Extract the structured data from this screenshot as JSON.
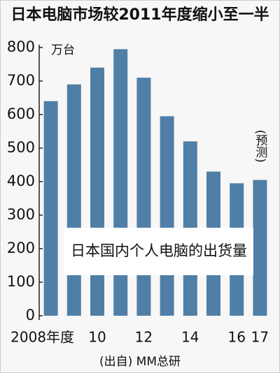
{
  "chart_data": {
    "type": "bar",
    "title": "日本电脑市场较2011年度缩小至一半",
    "unit_label": "万台",
    "inset_label": "日本国内个人电脑的出货量",
    "annotation": "(预测)",
    "source": "(出自) MM总研",
    "categories": [
      "2008年度",
      null,
      "10",
      null,
      "12",
      null,
      "14",
      null,
      "16",
      "17"
    ],
    "values": [
      640,
      690,
      740,
      795,
      710,
      595,
      520,
      430,
      395,
      405
    ],
    "color": "#4f7fa6",
    "ylim": [
      0,
      800
    ],
    "yticks": [
      0,
      100,
      200,
      300,
      400,
      500,
      600,
      700,
      800
    ],
    "grid": false
  }
}
